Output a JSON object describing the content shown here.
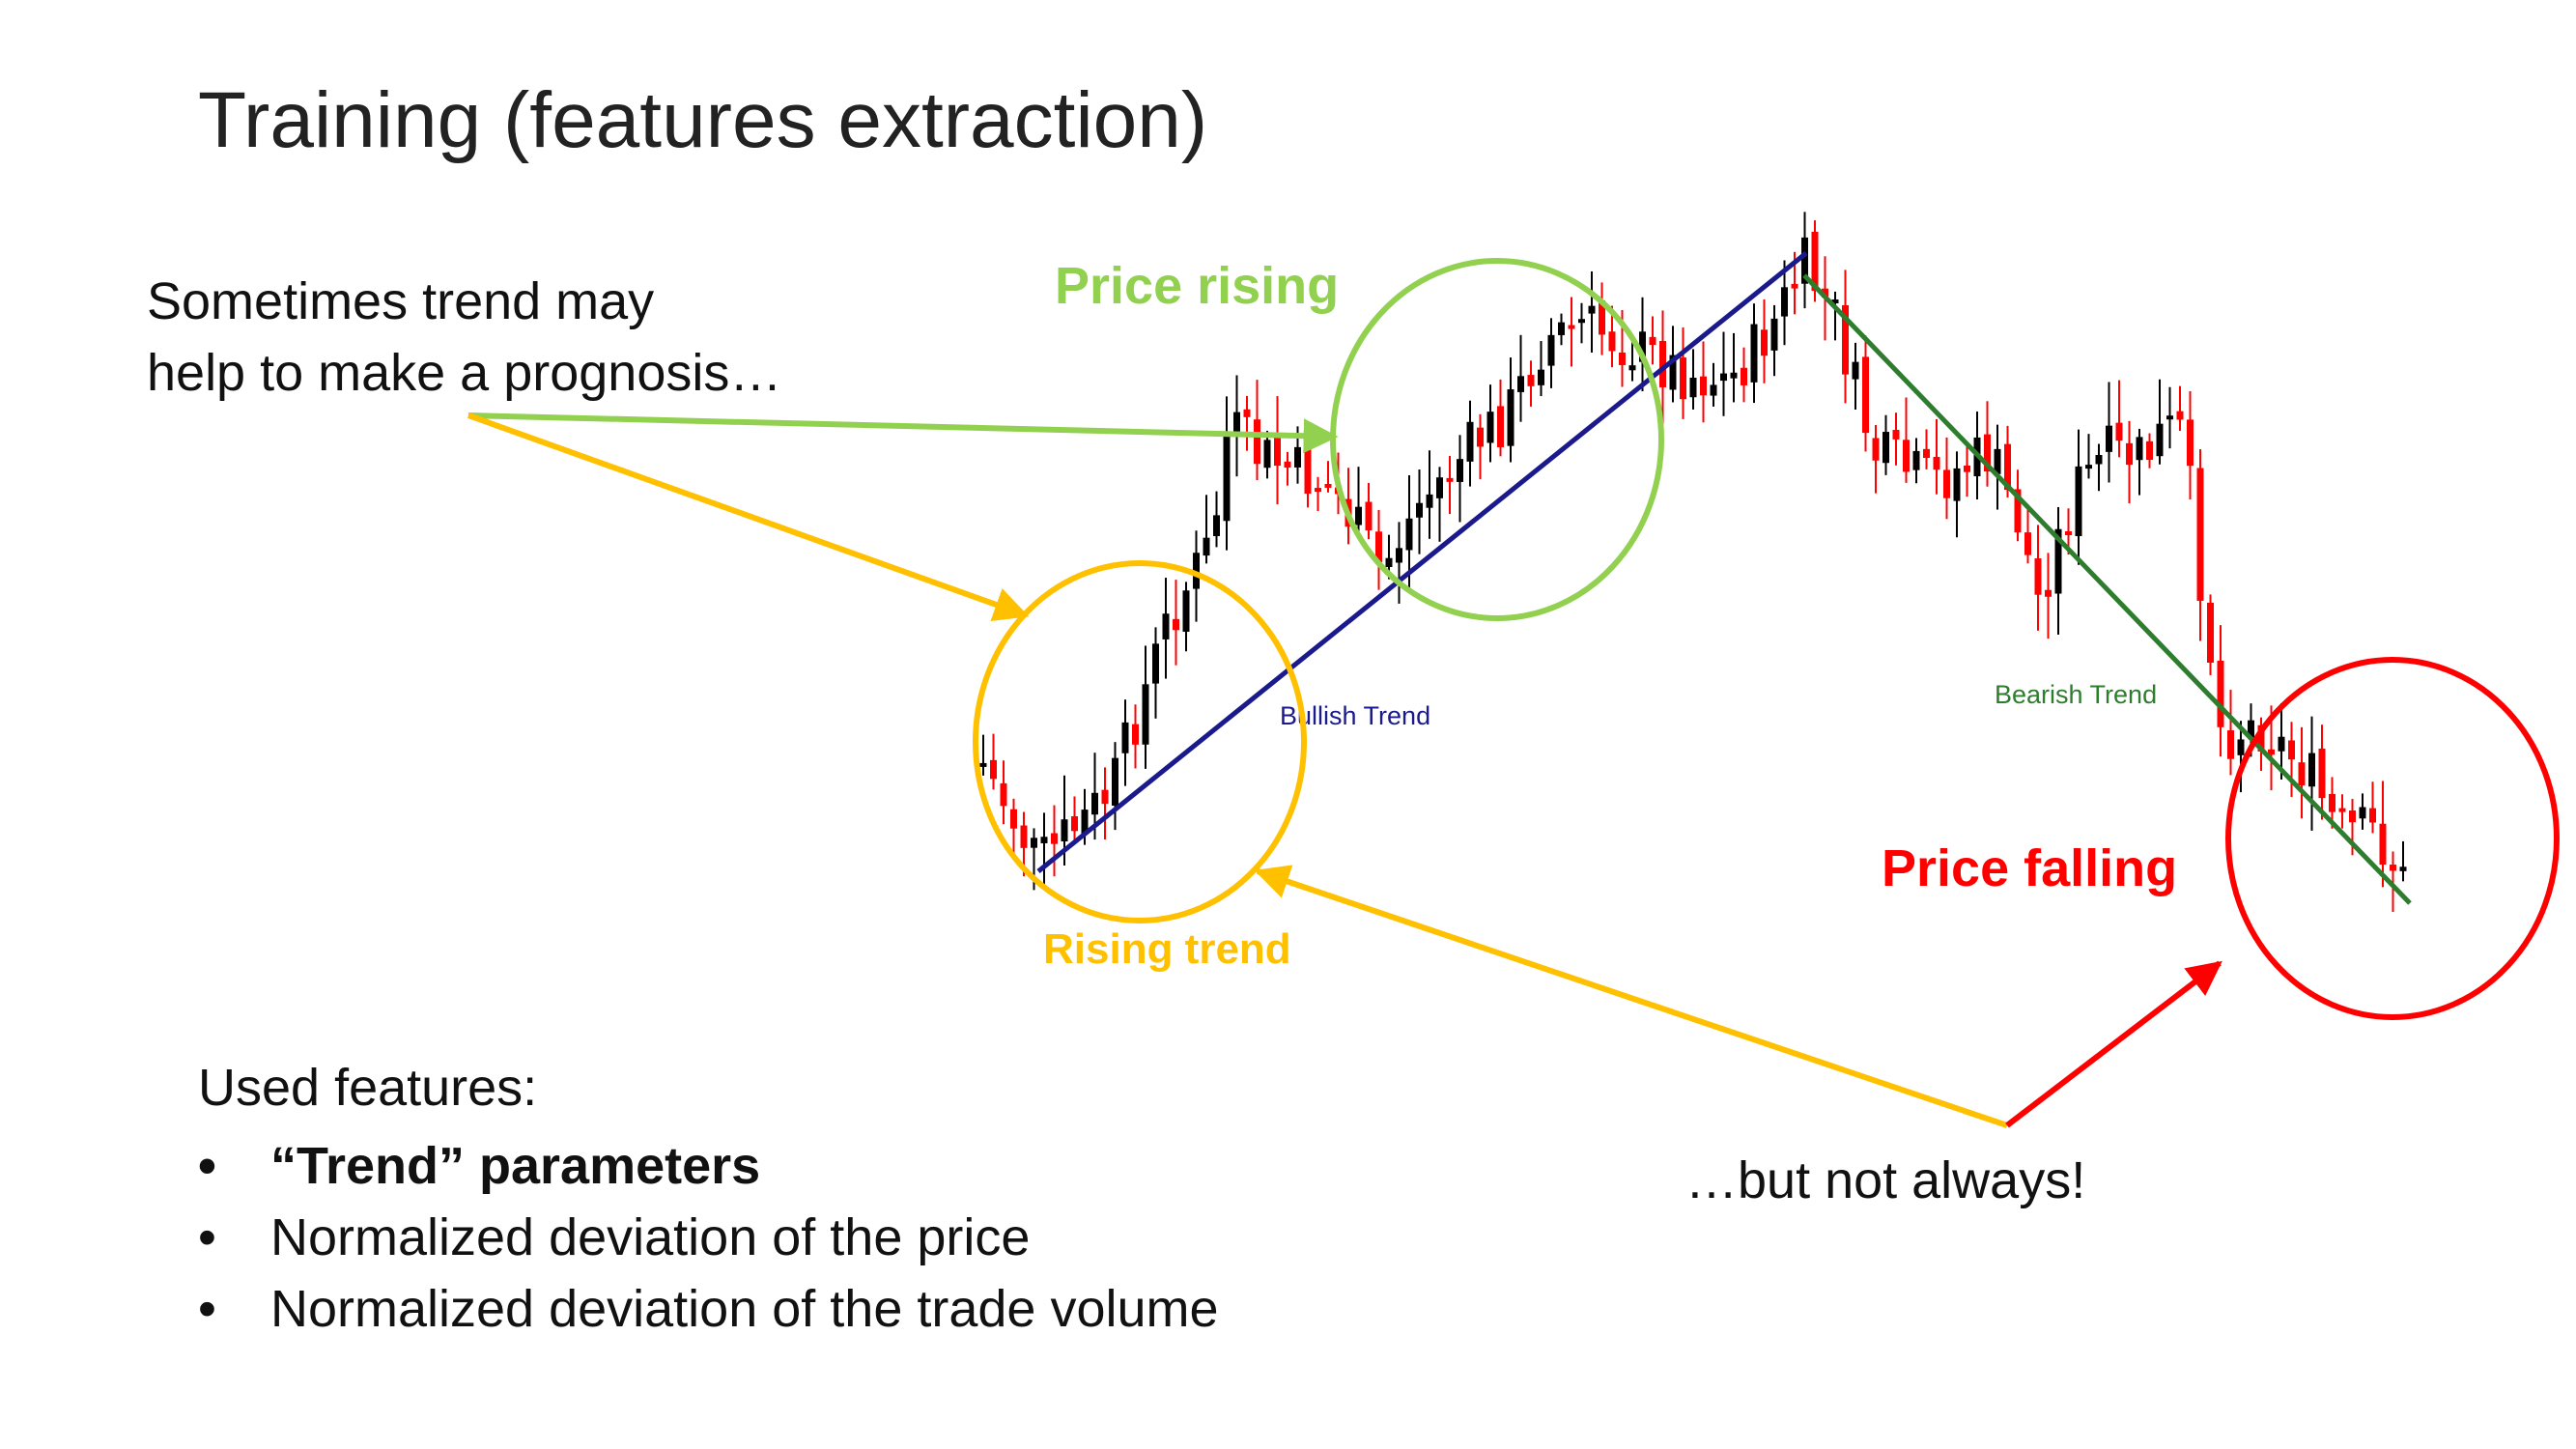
{
  "slide": {
    "title": "Training (features extraction)"
  },
  "notes": {
    "top_line1": "Sometimes trend may",
    "top_line2": "help to make a prognosis…",
    "bottom": "…but not always!"
  },
  "callouts": {
    "price_rising": "Price rising",
    "rising_trend": "Rising trend",
    "price_falling": "Price falling"
  },
  "chart_data": {
    "type": "candlestick",
    "trend_labels": {
      "bullish": "Bullish Trend",
      "bearish": "Bearish Trend"
    }
  },
  "features": {
    "heading": "Used features:",
    "items": [
      {
        "label": "“Trend” parameters",
        "bold": true
      },
      {
        "label": "Normalized deviation of the price",
        "bold": false
      },
      {
        "label": "Normalized deviation of the trade volume",
        "bold": false
      }
    ]
  },
  "colors": {
    "green": "#92d050",
    "yellow": "#ffc000",
    "red": "#ff0000",
    "bullish_line": "#1a1a8c",
    "bearish_line": "#2e7d2e",
    "candle_up": "#000000",
    "candle_down": "#ff0000"
  }
}
